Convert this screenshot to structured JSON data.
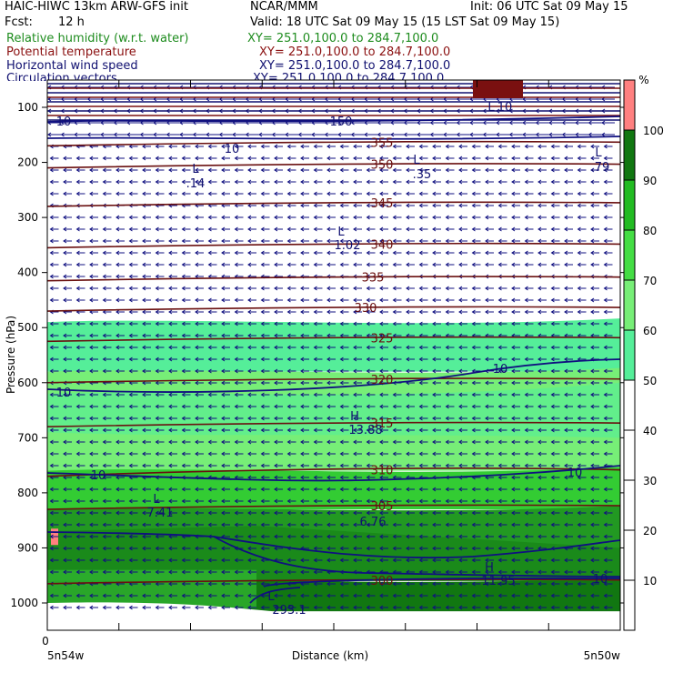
{
  "header": {
    "title_left": "HAIC-HIWC 13km ARW-GFS init",
    "center": "NCAR/MMM",
    "init": "Init: 06 UTC Sat 09 May 15",
    "fcst_label": "Fcst:",
    "fcst_value": "12 h",
    "valid": "Valid: 18 UTC Sat 09 May 15 (15 LST Sat 09 May 15)",
    "fields": [
      {
        "name": "Relative humidity (w.r.t. water)",
        "xy": "XY= 251.0,100.0 to 284.7,100.0",
        "color": "#1e8c1e"
      },
      {
        "name": "Potential temperature",
        "xy": "XY= 251.0,100.0 to 284.7,100.0",
        "color": "#8b1010"
      },
      {
        "name": "Horizontal wind speed",
        "xy": "XY= 251.0,100.0 to 284.7,100.0",
        "color": "#101070"
      },
      {
        "name": "Circulation vectors",
        "xy": "XY= 251.0,100.0 to 284.7,100.0",
        "color": "#101070"
      }
    ]
  },
  "chart_data": {
    "type": "heatmap",
    "xlabel": "Distance (km)",
    "ylabel": "Pressure (hPa)",
    "x_left_label": "5n54w",
    "x_right_label": "5n50w",
    "x_zero_label": "0",
    "yticks": [
      100,
      200,
      300,
      400,
      500,
      600,
      700,
      800,
      900,
      1000
    ],
    "ylim": [
      1050,
      70
    ],
    "colorbar": {
      "unit": "%",
      "levels": [
        10,
        20,
        30,
        40,
        50,
        60,
        70,
        80,
        90,
        100
      ],
      "colors": [
        "#ffffff",
        "#ffffff",
        "#ffffff",
        "#ffffff",
        "#ffffff",
        "#55ee99",
        "#77ee77",
        "#44dd44",
        "#22bb22",
        "#117711",
        "#ff8080"
      ]
    },
    "rh_layers": [
      {
        "p_top": 490,
        "p_bottom": 580,
        "color": "#55ee99"
      },
      {
        "p_top": 580,
        "p_bottom": 760,
        "color": "#77ee77"
      },
      {
        "p_top": 760,
        "p_bottom": 830,
        "color": "#33cc33"
      },
      {
        "p_top": 830,
        "p_bottom": 960,
        "color": "#229922"
      },
      {
        "p_top": 960,
        "p_bottom": 1020,
        "color": "#117711"
      }
    ],
    "theta_contours": [
      {
        "value": "355",
        "p": 165
      },
      {
        "value": "350",
        "p": 205
      },
      {
        "value": "345",
        "p": 275
      },
      {
        "value": "340",
        "p": 350
      },
      {
        "value": "335",
        "p": 410
      },
      {
        "value": "330",
        "p": 465
      },
      {
        "value": "325",
        "p": 520
      },
      {
        "value": "320",
        "p": 595
      },
      {
        "value": "315",
        "p": 675
      },
      {
        "value": "310",
        "p": 760
      },
      {
        "value": "305",
        "p": 825
      },
      {
        "value": "300",
        "p": 960
      }
    ],
    "wind_contour_labels": [
      "10",
      "150",
      "10",
      "10",
      "10",
      "10",
      "10",
      "10"
    ],
    "extrema": [
      {
        "type": "L",
        "value": ".14"
      },
      {
        "type": "L",
        "value": ".35"
      },
      {
        "type": "L",
        "value": ".79"
      },
      {
        "type": "L",
        "value": "1.02"
      },
      {
        "type": "L",
        "value": "7.41"
      },
      {
        "type": "H",
        "value": "13.88"
      },
      {
        "type": "H",
        "value": "11.95"
      },
      {
        "type": "L",
        "value": "293.1"
      },
      {
        "type": "L",
        "value": "10"
      },
      {
        "value": "6.76"
      }
    ]
  }
}
